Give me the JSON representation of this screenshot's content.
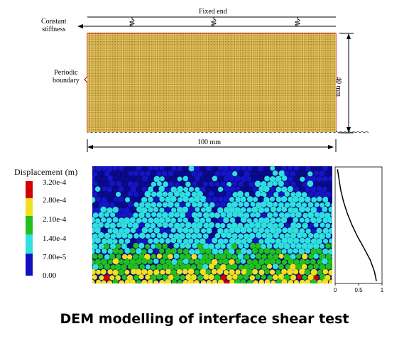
{
  "schematic": {
    "top_label": "Fixed end",
    "left_top_label_line1": "Constant",
    "left_top_label_line2": "stiffness",
    "side_label_line1": "Periodic",
    "side_label_line2": "boundary",
    "width_label": "100 mm",
    "height_label": "40 mm",
    "sample_color": "#c8a23c"
  },
  "legend": {
    "title": "Displacement (m)",
    "entries": [
      {
        "value": "3.20e-4",
        "color": "#d40000"
      },
      {
        "value": "2.80e-4",
        "color": "#f0e020"
      },
      {
        "value": "2.10e-4",
        "color": "#20c020"
      },
      {
        "value": "1.40e-4",
        "color": "#30e0e0"
      },
      {
        "value": "7.00e-5",
        "color": "#1010c0"
      },
      {
        "value": "0.00",
        "color": "#0a0a8a"
      }
    ]
  },
  "plot": {
    "x_ticks": [
      "0",
      "0.5",
      "1"
    ]
  },
  "caption": "DEM modelling of interface shear test",
  "chart_data": {
    "type": "line",
    "title": "",
    "xlabel": "",
    "ylabel": "",
    "xlim": [
      0,
      1
    ],
    "ylim": [
      0,
      1
    ],
    "series": [
      {
        "x": [
          0.05,
          0.08,
          0.12,
          0.18,
          0.26,
          0.36,
          0.48,
          0.62,
          0.75,
          0.84,
          0.88
        ],
        "y": [
          0.98,
          0.9,
          0.8,
          0.7,
          0.6,
          0.5,
          0.4,
          0.3,
          0.2,
          0.1,
          0.02
        ]
      }
    ]
  }
}
